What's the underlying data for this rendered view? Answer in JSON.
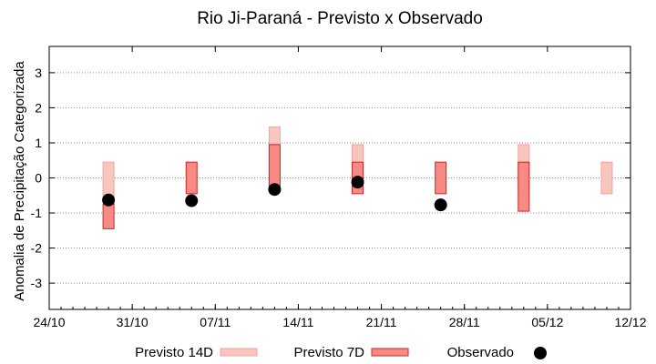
{
  "chart_data": {
    "type": "bar",
    "title": "Rio Ji-Paraná - Previsto x Observado",
    "xlabel": "",
    "ylabel": "Anomalia de Precipitação Categorizada",
    "ylim": [
      -3.75,
      3.75
    ],
    "yticks": [
      "-3",
      "-2",
      "-1",
      "0",
      "1",
      "2",
      "3"
    ],
    "ytick_values": [
      -3,
      -2,
      -1,
      0,
      1,
      2,
      3
    ],
    "xticks": [
      "24/10",
      "31/10",
      "07/11",
      "14/11",
      "21/11",
      "28/11",
      "05/12",
      "12/12"
    ],
    "xtick_values": [
      "2019-10-24",
      "2019-10-31",
      "2019-11-07",
      "2019-11-14",
      "2019-11-21",
      "2019-11-28",
      "2019-12-05",
      "2019-12-12"
    ],
    "xlim": [
      "2019-10-24",
      "2019-12-12"
    ],
    "grid": true,
    "legend_position": "bottom",
    "series": [
      {
        "name": "Previsto 14D",
        "color": "#f9c5bf",
        "points": [
          {
            "x": "2019-10-29",
            "low": -0.75,
            "high": 0.45
          },
          {
            "x": "2019-11-12",
            "low": -0.25,
            "high": 1.45
          },
          {
            "x": "2019-11-19",
            "low": -0.25,
            "high": 0.95
          },
          {
            "x": "2019-12-03",
            "low": -0.45,
            "high": 0.95
          },
          {
            "x": "2019-12-10",
            "low": -0.45,
            "high": 0.45
          }
        ]
      },
      {
        "name": "Previsto 7D",
        "color": "#f78b84",
        "points": [
          {
            "x": "2019-10-29",
            "low": -1.45,
            "high": -0.75
          },
          {
            "x": "2019-11-05",
            "low": -0.45,
            "high": 0.45
          },
          {
            "x": "2019-11-12",
            "low": -0.25,
            "high": 0.95
          },
          {
            "x": "2019-11-19",
            "low": -0.45,
            "high": 0.45
          },
          {
            "x": "2019-11-26",
            "low": -0.45,
            "high": 0.45
          },
          {
            "x": "2019-12-03",
            "low": -0.95,
            "high": 0.45
          }
        ]
      },
      {
        "name": "Observado",
        "color": "#000000",
        "points": [
          {
            "x": "2019-10-29",
            "y": -0.63
          },
          {
            "x": "2019-11-05",
            "y": -0.65
          },
          {
            "x": "2019-11-12",
            "y": -0.33
          },
          {
            "x": "2019-11-19",
            "y": -0.12
          },
          {
            "x": "2019-11-26",
            "y": -0.77
          }
        ]
      }
    ]
  }
}
